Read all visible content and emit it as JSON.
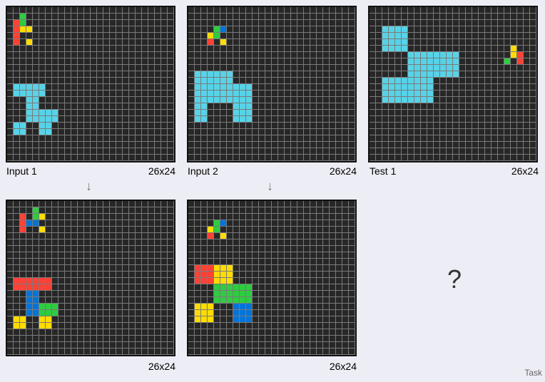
{
  "palette": {
    "0": "#272727",
    "1": "#0074d9",
    "2": "#ff4136",
    "3": "#2ecc40",
    "4": "#ffdc00",
    "8": "#57d3e8"
  },
  "panels": [
    {
      "id": "input1",
      "label": "Input 1",
      "dims": "26x24",
      "cells": [
        [
          2,
          1,
          2
        ],
        [
          2,
          1,
          3
        ],
        [
          2,
          1,
          4
        ],
        [
          2,
          1,
          5
        ],
        [
          3,
          2,
          1
        ],
        [
          3,
          2,
          2
        ],
        [
          4,
          2,
          3
        ],
        [
          4,
          3,
          3
        ],
        [
          4,
          3,
          5
        ],
        [
          8,
          1,
          12
        ],
        [
          8,
          2,
          12
        ],
        [
          8,
          3,
          12
        ],
        [
          8,
          4,
          12
        ],
        [
          8,
          5,
          12
        ],
        [
          8,
          1,
          13
        ],
        [
          8,
          2,
          13
        ],
        [
          8,
          3,
          13
        ],
        [
          8,
          4,
          13
        ],
        [
          8,
          5,
          13
        ],
        [
          8,
          3,
          14
        ],
        [
          8,
          4,
          14
        ],
        [
          8,
          3,
          15
        ],
        [
          8,
          4,
          15
        ],
        [
          8,
          3,
          16
        ],
        [
          8,
          4,
          16
        ],
        [
          8,
          5,
          16
        ],
        [
          8,
          6,
          16
        ],
        [
          8,
          7,
          16
        ],
        [
          8,
          3,
          17
        ],
        [
          8,
          4,
          17
        ],
        [
          8,
          5,
          17
        ],
        [
          8,
          6,
          17
        ],
        [
          8,
          7,
          17
        ],
        [
          8,
          1,
          18
        ],
        [
          8,
          2,
          18
        ],
        [
          8,
          5,
          18
        ],
        [
          8,
          6,
          18
        ],
        [
          8,
          1,
          19
        ],
        [
          8,
          2,
          19
        ],
        [
          8,
          5,
          19
        ],
        [
          8,
          6,
          19
        ]
      ]
    },
    {
      "id": "input2",
      "label": "Input 2",
      "dims": "26x24",
      "cells": [
        [
          3,
          4,
          3
        ],
        [
          1,
          5,
          3
        ],
        [
          4,
          3,
          4
        ],
        [
          3,
          4,
          4
        ],
        [
          2,
          3,
          5
        ],
        [
          4,
          5,
          5
        ],
        [
          8,
          1,
          10
        ],
        [
          8,
          2,
          10
        ],
        [
          8,
          3,
          10
        ],
        [
          8,
          4,
          10
        ],
        [
          8,
          5,
          10
        ],
        [
          8,
          6,
          10
        ],
        [
          8,
          1,
          11
        ],
        [
          8,
          2,
          11
        ],
        [
          8,
          3,
          11
        ],
        [
          8,
          4,
          11
        ],
        [
          8,
          5,
          11
        ],
        [
          8,
          6,
          11
        ],
        [
          8,
          1,
          12
        ],
        [
          8,
          2,
          12
        ],
        [
          8,
          3,
          12
        ],
        [
          8,
          4,
          12
        ],
        [
          8,
          5,
          12
        ],
        [
          8,
          6,
          12
        ],
        [
          8,
          7,
          12
        ],
        [
          8,
          8,
          12
        ],
        [
          8,
          9,
          12
        ],
        [
          8,
          1,
          13
        ],
        [
          8,
          2,
          13
        ],
        [
          8,
          3,
          13
        ],
        [
          8,
          4,
          13
        ],
        [
          8,
          5,
          13
        ],
        [
          8,
          6,
          13
        ],
        [
          8,
          7,
          13
        ],
        [
          8,
          8,
          13
        ],
        [
          8,
          9,
          13
        ],
        [
          8,
          1,
          14
        ],
        [
          8,
          2,
          14
        ],
        [
          8,
          3,
          14
        ],
        [
          8,
          4,
          14
        ],
        [
          8,
          5,
          14
        ],
        [
          8,
          6,
          14
        ],
        [
          8,
          7,
          14
        ],
        [
          8,
          8,
          14
        ],
        [
          8,
          9,
          14
        ],
        [
          8,
          1,
          15
        ],
        [
          8,
          2,
          15
        ],
        [
          8,
          7,
          15
        ],
        [
          8,
          8,
          15
        ],
        [
          8,
          9,
          15
        ],
        [
          8,
          1,
          16
        ],
        [
          8,
          2,
          16
        ],
        [
          8,
          7,
          16
        ],
        [
          8,
          8,
          16
        ],
        [
          8,
          9,
          16
        ],
        [
          8,
          1,
          17
        ],
        [
          8,
          2,
          17
        ],
        [
          8,
          7,
          17
        ],
        [
          8,
          8,
          17
        ],
        [
          8,
          9,
          17
        ]
      ]
    },
    {
      "id": "test1",
      "label": "Test 1",
      "dims": "26x24",
      "cells": [
        [
          8,
          2,
          3
        ],
        [
          8,
          3,
          3
        ],
        [
          8,
          4,
          3
        ],
        [
          8,
          5,
          3
        ],
        [
          8,
          2,
          4
        ],
        [
          8,
          3,
          4
        ],
        [
          8,
          4,
          4
        ],
        [
          8,
          5,
          4
        ],
        [
          8,
          2,
          5
        ],
        [
          8,
          3,
          5
        ],
        [
          8,
          4,
          5
        ],
        [
          8,
          5,
          5
        ],
        [
          8,
          2,
          6
        ],
        [
          8,
          3,
          6
        ],
        [
          8,
          4,
          6
        ],
        [
          8,
          5,
          6
        ],
        [
          8,
          6,
          7
        ],
        [
          8,
          7,
          7
        ],
        [
          8,
          8,
          7
        ],
        [
          8,
          9,
          7
        ],
        [
          8,
          10,
          7
        ],
        [
          8,
          11,
          7
        ],
        [
          8,
          12,
          7
        ],
        [
          8,
          13,
          7
        ],
        [
          8,
          6,
          8
        ],
        [
          8,
          7,
          8
        ],
        [
          8,
          8,
          8
        ],
        [
          8,
          9,
          8
        ],
        [
          8,
          10,
          8
        ],
        [
          8,
          11,
          8
        ],
        [
          8,
          12,
          8
        ],
        [
          8,
          13,
          8
        ],
        [
          8,
          6,
          9
        ],
        [
          8,
          7,
          9
        ],
        [
          8,
          8,
          9
        ],
        [
          8,
          9,
          9
        ],
        [
          8,
          10,
          9
        ],
        [
          8,
          11,
          9
        ],
        [
          8,
          12,
          9
        ],
        [
          8,
          13,
          9
        ],
        [
          8,
          6,
          10
        ],
        [
          8,
          7,
          10
        ],
        [
          8,
          8,
          10
        ],
        [
          8,
          9,
          10
        ],
        [
          8,
          10,
          10
        ],
        [
          8,
          11,
          10
        ],
        [
          8,
          12,
          10
        ],
        [
          8,
          13,
          10
        ],
        [
          8,
          2,
          11
        ],
        [
          8,
          3,
          11
        ],
        [
          8,
          4,
          11
        ],
        [
          8,
          5,
          11
        ],
        [
          8,
          6,
          11
        ],
        [
          8,
          7,
          11
        ],
        [
          8,
          8,
          11
        ],
        [
          8,
          9,
          11
        ],
        [
          8,
          2,
          12
        ],
        [
          8,
          3,
          12
        ],
        [
          8,
          4,
          12
        ],
        [
          8,
          5,
          12
        ],
        [
          8,
          6,
          12
        ],
        [
          8,
          7,
          12
        ],
        [
          8,
          8,
          12
        ],
        [
          8,
          9,
          12
        ],
        [
          8,
          2,
          13
        ],
        [
          8,
          3,
          13
        ],
        [
          8,
          4,
          13
        ],
        [
          8,
          5,
          13
        ],
        [
          8,
          6,
          13
        ],
        [
          8,
          7,
          13
        ],
        [
          8,
          8,
          13
        ],
        [
          8,
          9,
          13
        ],
        [
          8,
          2,
          14
        ],
        [
          8,
          3,
          14
        ],
        [
          8,
          4,
          14
        ],
        [
          8,
          5,
          14
        ],
        [
          8,
          6,
          14
        ],
        [
          8,
          7,
          14
        ],
        [
          8,
          8,
          14
        ],
        [
          8,
          9,
          14
        ],
        [
          4,
          22,
          6
        ],
        [
          4,
          22,
          7
        ],
        [
          2,
          23,
          7
        ],
        [
          3,
          21,
          8
        ],
        [
          2,
          23,
          8
        ]
      ]
    },
    {
      "id": "output1",
      "label": "",
      "dims": "26x24",
      "cells": [
        [
          3,
          4,
          1
        ],
        [
          2,
          2,
          2
        ],
        [
          3,
          4,
          2
        ],
        [
          4,
          5,
          2
        ],
        [
          2,
          2,
          3
        ],
        [
          1,
          3,
          3
        ],
        [
          1,
          4,
          3
        ],
        [
          2,
          2,
          4
        ],
        [
          4,
          5,
          4
        ],
        [
          2,
          1,
          12
        ],
        [
          2,
          2,
          12
        ],
        [
          2,
          3,
          12
        ],
        [
          2,
          4,
          12
        ],
        [
          2,
          5,
          12
        ],
        [
          2,
          6,
          12
        ],
        [
          2,
          1,
          13
        ],
        [
          2,
          2,
          13
        ],
        [
          2,
          3,
          13
        ],
        [
          2,
          4,
          13
        ],
        [
          2,
          5,
          13
        ],
        [
          2,
          6,
          13
        ],
        [
          1,
          3,
          14
        ],
        [
          1,
          4,
          14
        ],
        [
          1,
          3,
          15
        ],
        [
          1,
          4,
          15
        ],
        [
          1,
          3,
          16
        ],
        [
          1,
          4,
          16
        ],
        [
          3,
          5,
          16
        ],
        [
          3,
          6,
          16
        ],
        [
          3,
          7,
          16
        ],
        [
          1,
          3,
          17
        ],
        [
          1,
          4,
          17
        ],
        [
          3,
          5,
          17
        ],
        [
          3,
          6,
          17
        ],
        [
          3,
          7,
          17
        ],
        [
          4,
          1,
          18
        ],
        [
          4,
          2,
          18
        ],
        [
          4,
          5,
          18
        ],
        [
          4,
          6,
          18
        ],
        [
          4,
          1,
          19
        ],
        [
          4,
          2,
          19
        ],
        [
          4,
          5,
          19
        ],
        [
          4,
          6,
          19
        ]
      ]
    },
    {
      "id": "output2",
      "label": "",
      "dims": "26x24",
      "cells": [
        [
          3,
          4,
          3
        ],
        [
          1,
          5,
          3
        ],
        [
          4,
          3,
          4
        ],
        [
          3,
          4,
          4
        ],
        [
          2,
          3,
          5
        ],
        [
          4,
          5,
          5
        ],
        [
          2,
          1,
          10
        ],
        [
          2,
          2,
          10
        ],
        [
          2,
          3,
          10
        ],
        [
          4,
          4,
          10
        ],
        [
          4,
          5,
          10
        ],
        [
          4,
          6,
          10
        ],
        [
          2,
          1,
          11
        ],
        [
          2,
          2,
          11
        ],
        [
          2,
          3,
          11
        ],
        [
          4,
          4,
          11
        ],
        [
          4,
          5,
          11
        ],
        [
          4,
          6,
          11
        ],
        [
          2,
          1,
          12
        ],
        [
          2,
          2,
          12
        ],
        [
          2,
          3,
          12
        ],
        [
          4,
          4,
          12
        ],
        [
          4,
          5,
          12
        ],
        [
          4,
          6,
          12
        ],
        [
          3,
          4,
          13
        ],
        [
          3,
          5,
          13
        ],
        [
          3,
          6,
          13
        ],
        [
          3,
          7,
          13
        ],
        [
          3,
          8,
          13
        ],
        [
          3,
          9,
          13
        ],
        [
          3,
          4,
          14
        ],
        [
          3,
          5,
          14
        ],
        [
          3,
          6,
          14
        ],
        [
          3,
          7,
          14
        ],
        [
          3,
          8,
          14
        ],
        [
          3,
          9,
          14
        ],
        [
          3,
          4,
          15
        ],
        [
          3,
          5,
          15
        ],
        [
          3,
          6,
          15
        ],
        [
          3,
          7,
          15
        ],
        [
          3,
          8,
          15
        ],
        [
          3,
          9,
          15
        ],
        [
          4,
          1,
          16
        ],
        [
          4,
          2,
          16
        ],
        [
          4,
          3,
          16
        ],
        [
          1,
          7,
          16
        ],
        [
          1,
          8,
          16
        ],
        [
          1,
          9,
          16
        ],
        [
          4,
          1,
          17
        ],
        [
          4,
          2,
          17
        ],
        [
          4,
          3,
          17
        ],
        [
          1,
          7,
          17
        ],
        [
          1,
          8,
          17
        ],
        [
          1,
          9,
          17
        ],
        [
          4,
          1,
          18
        ],
        [
          4,
          2,
          18
        ],
        [
          4,
          3,
          18
        ],
        [
          1,
          7,
          18
        ],
        [
          1,
          8,
          18
        ],
        [
          1,
          9,
          18
        ]
      ]
    }
  ],
  "arrow": "↓",
  "unknown": "?",
  "footer": "Task"
}
